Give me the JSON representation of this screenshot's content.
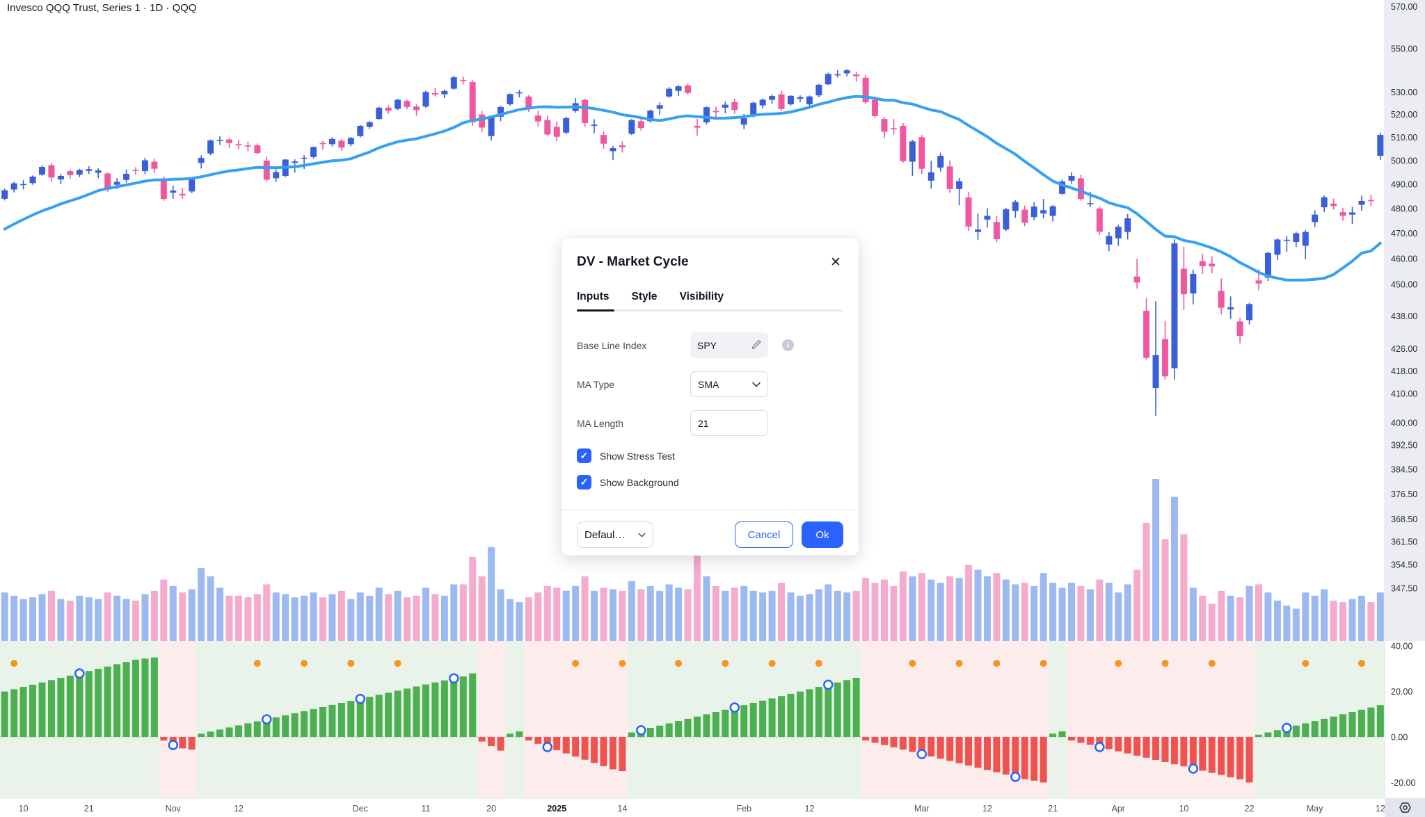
{
  "header": {
    "title": "Invesco QQQ Trust, Series 1 · 1D · QQQ"
  },
  "dialog": {
    "title": "DV - Market Cycle",
    "close_label": "✕",
    "tabs": {
      "inputs": "Inputs",
      "style": "Style",
      "visibility": "Visibility"
    },
    "active_tab": "Inputs",
    "fields": {
      "base_line_index": {
        "label": "Base Line Index",
        "value": "SPY"
      },
      "ma_type": {
        "label": "MA Type",
        "value": "SMA"
      },
      "ma_length": {
        "label": "MA Length",
        "value": "21"
      },
      "show_stress_test": {
        "label": "Show Stress Test",
        "checked": true
      },
      "show_background": {
        "label": "Show Background",
        "checked": true
      },
      "check_glyph": "✓"
    },
    "footer": {
      "preset_label": "Defaul…",
      "cancel_label": "Cancel",
      "ok_label": "Ok"
    }
  },
  "colors": {
    "up": "#3b5fd8",
    "down": "#ef58a1",
    "ma": "#35a1f0",
    "vol_up": "#9db9f2",
    "vol_down": "#f5abce",
    "ind_pos": "#4caf50",
    "ind_neg": "#ef5350",
    "bg_pos": "#e9f3ea",
    "bg_neg": "#fdecec",
    "dot": "#f7941c",
    "circle": "#2962ff",
    "accent": "#2962ff",
    "axis_bg": "#ebedf2",
    "corner_bg": "#e3e6ee"
  },
  "chart_data": {
    "type": "candlestick+volume+oscillator",
    "title": "Invesco QQQ Trust, Series 1, 1D, QQQ",
    "scale": "log",
    "price_axis_ticks": [
      570,
      550,
      530,
      520,
      510,
      500,
      490,
      480,
      470,
      460,
      450,
      438,
      426,
      418,
      410,
      400,
      392.5,
      384.5,
      376.5,
      368.5,
      361.5,
      354.5,
      347.5
    ],
    "indicator_axis_ticks": [
      40,
      20,
      0,
      -20
    ],
    "time_axis_labels": [
      {
        "label": "10",
        "bar": 2
      },
      {
        "label": "21",
        "bar": 9
      },
      {
        "label": "Nov",
        "bar": 18
      },
      {
        "label": "12",
        "bar": 25
      },
      {
        "label": "Dec",
        "bar": 38
      },
      {
        "label": "11",
        "bar": 45
      },
      {
        "label": "20",
        "bar": 52
      },
      {
        "label": "2025",
        "bar": 59,
        "bold": true
      },
      {
        "label": "14",
        "bar": 66
      },
      {
        "label": "Feb",
        "bar": 79
      },
      {
        "label": "12",
        "bar": 86
      },
      {
        "label": "Mar",
        "bar": 98
      },
      {
        "label": "12",
        "bar": 105
      },
      {
        "label": "21",
        "bar": 112
      },
      {
        "label": "Apr",
        "bar": 119
      },
      {
        "label": "10",
        "bar": 126
      },
      {
        "label": "22",
        "bar": 133
      },
      {
        "label": "May",
        "bar": 140
      },
      {
        "label": "12",
        "bar": 147
      }
    ],
    "ma_period": 21,
    "ma_pre_closes": [
      448,
      450,
      456,
      462,
      465,
      461,
      468,
      470,
      466,
      463,
      470,
      476,
      478,
      480,
      483,
      486,
      484,
      481,
      484,
      486
    ],
    "candles": [
      [
        484,
        488.2,
        483.3,
        487.5
      ],
      [
        487.8,
        491,
        486.6,
        490.4
      ],
      [
        490,
        491.7,
        487.9,
        490.1
      ],
      [
        490.5,
        493.7,
        489.8,
        493.2
      ],
      [
        494,
        498,
        493.6,
        497.3
      ],
      [
        498,
        498.9,
        491.1,
        492.8
      ],
      [
        492,
        494.3,
        490,
        493.5
      ],
      [
        495.5,
        496.3,
        492.3,
        493.8
      ],
      [
        494,
        496.5,
        493,
        496
      ],
      [
        495.6,
        497.6,
        494.3,
        496.3
      ],
      [
        494.8,
        496.7,
        492.5,
        495.8
      ],
      [
        494.5,
        495,
        486.9,
        488.5
      ],
      [
        489.8,
        492.6,
        488,
        491
      ],
      [
        491.8,
        496.2,
        490.7,
        494.4
      ],
      [
        496.1,
        497.2,
        494,
        495.9
      ],
      [
        495.5,
        501.2,
        494.2,
        500.1
      ],
      [
        499.5,
        500.8,
        494.8,
        496.5
      ],
      [
        492.5,
        493.3,
        483.1,
        483.9
      ],
      [
        486.5,
        489.5,
        484,
        487.4
      ],
      [
        486,
        488.4,
        484,
        485.4
      ],
      [
        487,
        492.2,
        486.3,
        492
      ],
      [
        499,
        502.2,
        496.6,
        501.1
      ],
      [
        503,
        509,
        502.3,
        508.6
      ],
      [
        508.5,
        510.5,
        506.7,
        508.9
      ],
      [
        509,
        509.7,
        505.4,
        507.5
      ],
      [
        507,
        508.8,
        504.8,
        506.5
      ],
      [
        506.5,
        508.1,
        503.9,
        506
      ],
      [
        506.5,
        507.3,
        502.6,
        503.2
      ],
      [
        500,
        501.7,
        491.2,
        491.9
      ],
      [
        492.5,
        496.2,
        490.9,
        495.1
      ],
      [
        493.5,
        500.6,
        493,
        500.4
      ],
      [
        499,
        500.5,
        494.8,
        499.6
      ],
      [
        501,
        502.3,
        496.4,
        501.2
      ],
      [
        501.5,
        506,
        500.8,
        505.8
      ],
      [
        507.5,
        508.4,
        504.6,
        507.2
      ],
      [
        507,
        510,
        506,
        509.3
      ],
      [
        508.5,
        509.2,
        504.2,
        505.5
      ],
      [
        507,
        510.1,
        506.1,
        509.7
      ],
      [
        510.5,
        515.3,
        510,
        515
      ],
      [
        514.5,
        517,
        513.6,
        516.6
      ],
      [
        518,
        523.4,
        517.6,
        523
      ],
      [
        523,
        524.1,
        520.2,
        521.6
      ],
      [
        522.5,
        527,
        521.9,
        526.5
      ],
      [
        526,
        526.6,
        522.3,
        523.3
      ],
      [
        523.5,
        524.5,
        519.4,
        521.9
      ],
      [
        523.5,
        530.6,
        522.9,
        530
      ],
      [
        529.5,
        531.8,
        528,
        528.9
      ],
      [
        529,
        531.2,
        527.3,
        530.5
      ],
      [
        531.5,
        537.4,
        531,
        536.7
      ],
      [
        535.5,
        537.1,
        533.4,
        535
      ],
      [
        534.5,
        535.4,
        515,
        516.5
      ],
      [
        520,
        521.5,
        512.3,
        514.2
      ],
      [
        510.5,
        519.3,
        508.5,
        518.7
      ],
      [
        519,
        523.8,
        517,
        523.3
      ],
      [
        524.5,
        529.4,
        523.9,
        529.1
      ],
      [
        529.5,
        531,
        527.6,
        529.9
      ],
      [
        528,
        528.6,
        521.1,
        522.8
      ],
      [
        519.5,
        521.6,
        514.7,
        516.9
      ],
      [
        517.5,
        519.5,
        510.6,
        511.2
      ],
      [
        514.5,
        517,
        508.3,
        510.2
      ],
      [
        512,
        519,
        511.4,
        518.4
      ],
      [
        521.5,
        527.3,
        520.8,
        525
      ],
      [
        526.5,
        527,
        514.4,
        516.2
      ],
      [
        515,
        517.9,
        511.8,
        515.5
      ],
      [
        511,
        512.6,
        505,
        507.2
      ],
      [
        504,
        506.3,
        500.2,
        505.3
      ],
      [
        506.5,
        508.2,
        503.4,
        505.7
      ],
      [
        511.5,
        518,
        511,
        517.5
      ],
      [
        517,
        518.6,
        512.9,
        514
      ],
      [
        517,
        522.2,
        516.4,
        521.7
      ],
      [
        522.5,
        525.3,
        519.8,
        524.1
      ],
      [
        528,
        532.3,
        527.3,
        531.5
      ],
      [
        530.5,
        533.2,
        528.2,
        532.6
      ],
      [
        533,
        533.9,
        528.8,
        529.6
      ],
      [
        515,
        518,
        510.7,
        514.2
      ],
      [
        516.5,
        523.6,
        515.5,
        523.2
      ],
      [
        521.5,
        523.5,
        518.9,
        521.3
      ],
      [
        523,
        525.7,
        520.5,
        524.3
      ],
      [
        525.5,
        527,
        520.3,
        522
      ],
      [
        515.5,
        520.2,
        513.5,
        518.3
      ],
      [
        519.5,
        525.7,
        518.6,
        525.2
      ],
      [
        524,
        527.1,
        522.6,
        526.6
      ],
      [
        526.5,
        528.9,
        524.8,
        528.2
      ],
      [
        529,
        530.6,
        521.5,
        522.4
      ],
      [
        524.5,
        528.6,
        523.8,
        528.3
      ],
      [
        527,
        528.5,
        525.4,
        527.7
      ],
      [
        524.5,
        528.4,
        523.8,
        528
      ],
      [
        528.5,
        533.6,
        527.6,
        533.3
      ],
      [
        533.5,
        538.8,
        533.2,
        538.2
      ],
      [
        538,
        540,
        536.6,
        538.1
      ],
      [
        538.5,
        540.5,
        537.1,
        539.9
      ],
      [
        538,
        539.3,
        534.7,
        537.2
      ],
      [
        536.5,
        537.6,
        524.6,
        525.4
      ],
      [
        526.5,
        528,
        518.6,
        519.3
      ],
      [
        518,
        518.9,
        509.5,
        512.4
      ],
      [
        514,
        518,
        511.1,
        513.8
      ],
      [
        515,
        516.2,
        499.1,
        499.7
      ],
      [
        499.5,
        508.9,
        493.5,
        508.2
      ],
      [
        510,
        511,
        494.3,
        496.5
      ],
      [
        491.5,
        499.9,
        488.2,
        495
      ],
      [
        497,
        503.3,
        495.3,
        502
      ],
      [
        497.5,
        500.1,
        486.4,
        488
      ],
      [
        488,
        492.7,
        481.3,
        491.3
      ],
      [
        484.5,
        486.9,
        470.9,
        472.7
      ],
      [
        470.5,
        477.9,
        467.3,
        471.5
      ],
      [
        475.5,
        480.1,
        472.2,
        477
      ],
      [
        474.5,
        477,
        466.4,
        467.6
      ],
      [
        471.5,
        480.2,
        470.9,
        479.7
      ],
      [
        479,
        483.4,
        476.2,
        482.7
      ],
      [
        479.5,
        481.2,
        472.8,
        474.2
      ],
      [
        476.5,
        482.6,
        475.3,
        480.8
      ],
      [
        478,
        483.9,
        476,
        479.3
      ],
      [
        477,
        481.4,
        474.7,
        480.9
      ],
      [
        486,
        491.9,
        485.6,
        491.2
      ],
      [
        491.5,
        495,
        490.2,
        493.5
      ],
      [
        492.5,
        493.9,
        483.2,
        483.9
      ],
      [
        482,
        486.9,
        480.6,
        482.2
      ],
      [
        480,
        480.8,
        469.3,
        470.6
      ],
      [
        465.5,
        470.5,
        462.8,
        468.9
      ],
      [
        468,
        473.4,
        465,
        472.6
      ],
      [
        470.5,
        477.8,
        467.5,
        476
      ],
      [
        453,
        459.9,
        448.4,
        450.7
      ],
      [
        440,
        444.7,
        422,
        422.7
      ],
      [
        412,
        443.6,
        402.4,
        423.7
      ],
      [
        429.5,
        436.2,
        415,
        416.1
      ],
      [
        419,
        467.6,
        415,
        466
      ],
      [
        456,
        464.7,
        440.2,
        446.2
      ],
      [
        446.5,
        455.7,
        442.4,
        454
      ],
      [
        459,
        461.9,
        454,
        457
      ],
      [
        458,
        460.9,
        454.2,
        456.9
      ],
      [
        447.5,
        452.3,
        438.7,
        441.1
      ],
      [
        440.5,
        445.4,
        437,
        441.3
      ],
      [
        436,
        437.4,
        428,
        430.7
      ],
      [
        436.5,
        443,
        434.9,
        442.5
      ],
      [
        451.5,
        455.8,
        447.7,
        450.3
      ],
      [
        452.5,
        462.6,
        451.3,
        462.2
      ],
      [
        461.5,
        468,
        459.4,
        467.5
      ],
      [
        467,
        469,
        462.6,
        467.4
      ],
      [
        466.5,
        470.5,
        464.5,
        470
      ],
      [
        465,
        471.2,
        459.7,
        470.5
      ],
      [
        474.5,
        479.3,
        472.4,
        477.5
      ],
      [
        480.5,
        485.3,
        478.5,
        484.6
      ],
      [
        482,
        484,
        479.6,
        481
      ],
      [
        478.5,
        480.2,
        475,
        477
      ],
      [
        477.5,
        480.7,
        473.7,
        478.4
      ],
      [
        481.5,
        485.3,
        479,
        483.1
      ],
      [
        483.5,
        485.6,
        481,
        483
      ],
      [
        502,
        512,
        500.3,
        511
      ]
    ],
    "volume_rel": [
      30,
      28,
      26,
      27,
      29,
      31,
      26,
      25,
      28,
      27,
      26,
      30,
      28,
      26,
      25,
      29,
      31,
      38,
      34,
      30,
      32,
      45,
      40,
      33,
      28,
      28,
      27,
      29,
      35,
      30,
      29,
      27,
      28,
      30,
      27,
      29,
      31,
      26,
      30,
      28,
      33,
      29,
      31,
      27,
      28,
      33,
      29,
      28,
      35,
      35,
      52,
      40,
      58,
      32,
      26,
      24,
      27,
      30,
      34,
      33,
      31,
      34,
      40,
      31,
      33,
      32,
      31,
      37,
      32,
      34,
      31,
      35,
      33,
      32,
      56,
      40,
      34,
      31,
      33,
      34,
      31,
      30,
      31,
      36,
      30,
      28,
      29,
      32,
      35,
      31,
      30,
      31,
      39,
      36,
      38,
      34,
      43,
      40,
      42,
      38,
      36,
      40,
      39,
      47,
      44,
      40,
      42,
      38,
      35,
      36,
      34,
      42,
      36,
      33,
      36,
      34,
      32,
      38,
      36,
      30,
      35,
      44,
      73,
      100,
      63,
      89,
      66,
      33,
      28,
      23,
      31,
      28,
      27,
      34,
      35,
      30,
      25,
      22,
      20,
      30,
      28,
      32,
      25,
      24,
      26,
      28,
      24,
      30
    ],
    "indicator_name": "DV - Market Cycle",
    "indicator_values": [
      20,
      21,
      22,
      23,
      24,
      25,
      26,
      27,
      28,
      29,
      30,
      31,
      32,
      33,
      34,
      34.5,
      35,
      -1.5,
      -3.5,
      -5,
      -5.5,
      1.5,
      2.4,
      3.3,
      4.2,
      5.1,
      6,
      6.9,
      7.8,
      8.7,
      9.6,
      10.5,
      11.4,
      12.3,
      13.2,
      14.1,
      15,
      15.9,
      16.8,
      17.7,
      18.6,
      19.5,
      20.4,
      21.3,
      22.2,
      23.1,
      24,
      24.9,
      25.8,
      26.7,
      28,
      -2,
      -4,
      -6,
      1.5,
      2.5,
      -1.5,
      -3,
      -4.4,
      -5.8,
      -7.2,
      -8.6,
      -10,
      -11.4,
      -12.8,
      -14.2,
      -15,
      2,
      3,
      4,
      5,
      6,
      7,
      8,
      9,
      10,
      11,
      12,
      13,
      14,
      15,
      16,
      17,
      18,
      19,
      20,
      21,
      22,
      23,
      24,
      25,
      26,
      -1.5,
      -2.5,
      -3.5,
      -4.5,
      -5.5,
      -6.5,
      -7.5,
      -8.5,
      -9.5,
      -10.5,
      -11.5,
      -12.5,
      -13.5,
      -14.5,
      -15.5,
      -16.5,
      -17.5,
      -18.5,
      -19.2,
      -20,
      1.5,
      2.5,
      -1.5,
      -2.5,
      -3.4,
      -4.4,
      -5.3,
      -6.3,
      -7.2,
      -8.2,
      -9.1,
      -10.1,
      -11,
      -12,
      -12.9,
      -13.9,
      -14.8,
      -15.8,
      -16.7,
      -17.7,
      -18.6,
      -20,
      1,
      2,
      3,
      4,
      5,
      6,
      7,
      8,
      9,
      10,
      11,
      12,
      13,
      14
    ],
    "orange_dot_bars": [
      1,
      27,
      32,
      37,
      42,
      61,
      66,
      72,
      77,
      82,
      87,
      97,
      102,
      106,
      111,
      119,
      124,
      129,
      139,
      145
    ],
    "stress_circle_bars": [
      8,
      18,
      28,
      38,
      48,
      58,
      68,
      78,
      88,
      98,
      108,
      117,
      127,
      137
    ]
  }
}
